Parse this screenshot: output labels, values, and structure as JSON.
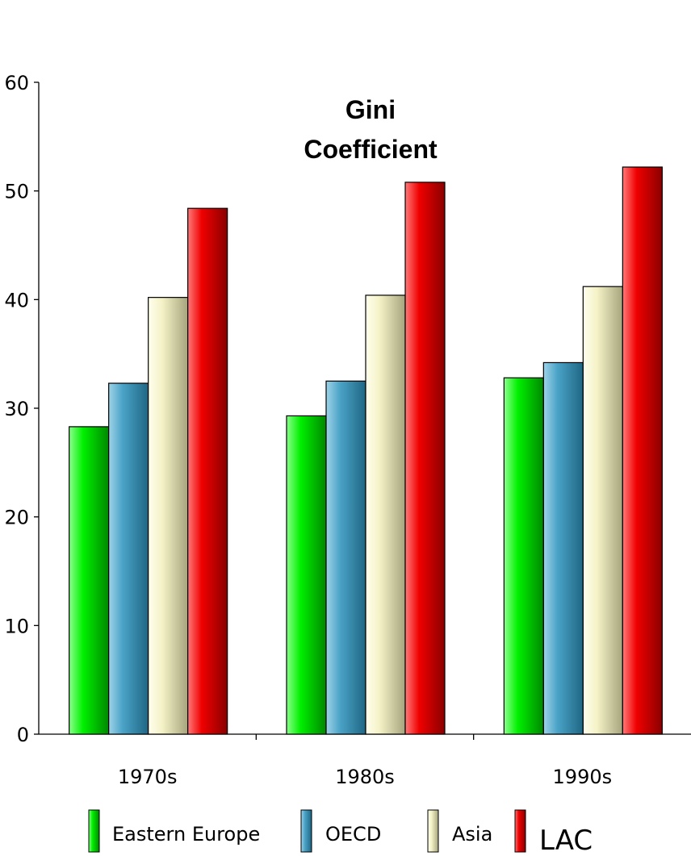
{
  "chart_data": {
    "type": "bar",
    "title_lines": [
      "Gini",
      "Coefficient"
    ],
    "categories": [
      "1970s",
      "1980s",
      "1990s"
    ],
    "series": [
      {
        "name": "Eastern Europe",
        "values": [
          28.3,
          29.3,
          32.8
        ],
        "color": "#00ee00"
      },
      {
        "name": "OECD",
        "values": [
          32.3,
          32.5,
          34.2
        ],
        "color": "#4aa3c7"
      },
      {
        "name": "Asia",
        "values": [
          40.2,
          40.4,
          41.2
        ],
        "color": "#f4f2c6"
      },
      {
        "name": "LAC",
        "values": [
          48.4,
          50.8,
          52.2
        ],
        "color": "#ee0000"
      }
    ],
    "y_ticks": [
      "0",
      "10",
      "20",
      "30",
      "40",
      "50",
      "60"
    ],
    "ylim": [
      0,
      60
    ],
    "grid": false,
    "legend_position": "bottom"
  }
}
